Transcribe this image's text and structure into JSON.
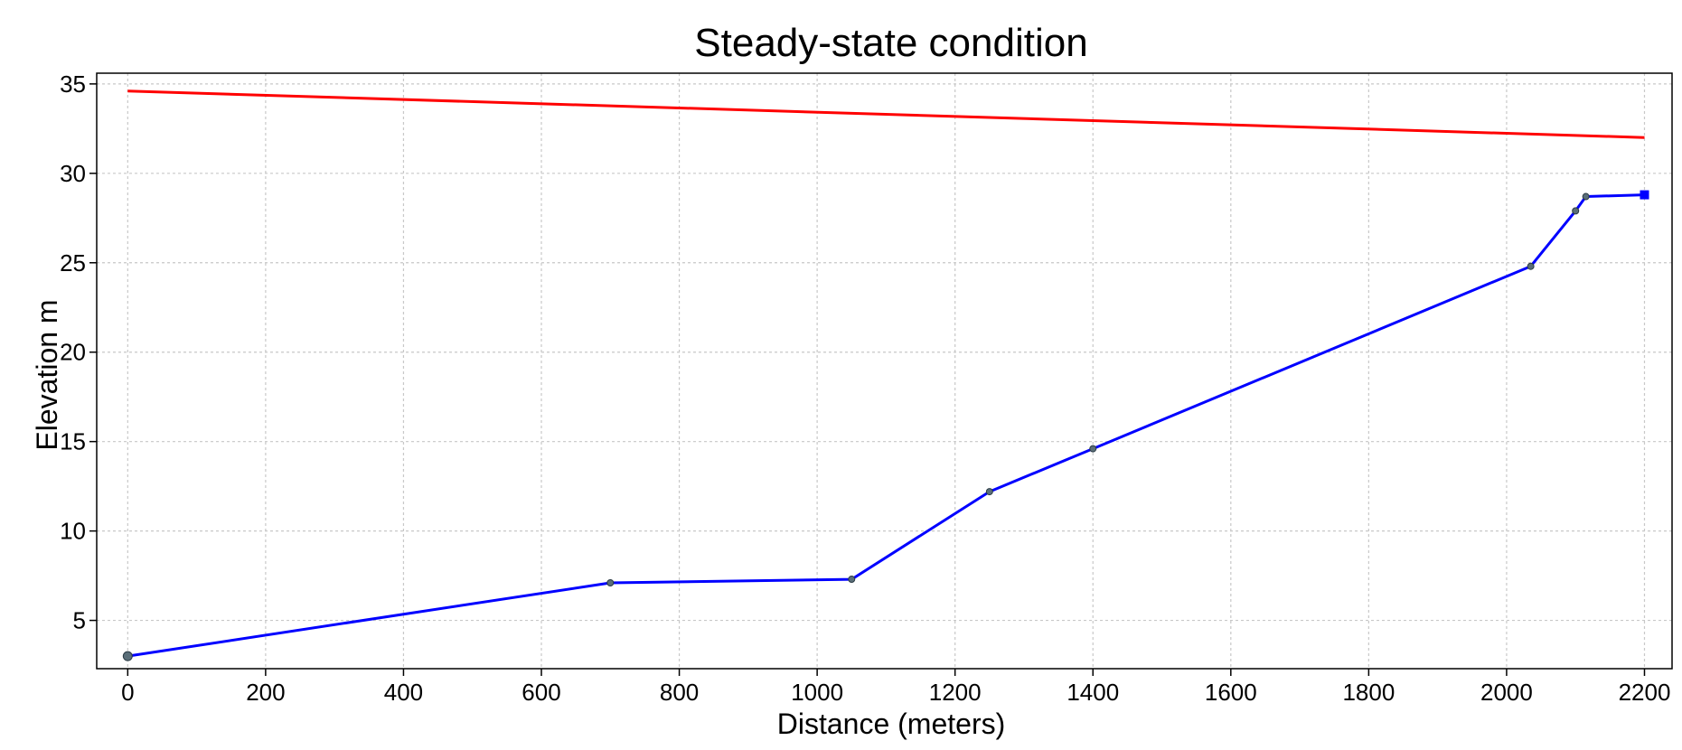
{
  "chart_data": {
    "type": "line",
    "title": "Steady-state condition",
    "xlabel": "Distance (meters)",
    "ylabel": "Elevation m",
    "xlim": [
      -45,
      2240
    ],
    "ylim": [
      2.3,
      35.6
    ],
    "xticks": [
      0,
      200,
      400,
      600,
      800,
      1000,
      1200,
      1400,
      1600,
      1800,
      2000,
      2200
    ],
    "yticks": [
      5,
      10,
      15,
      20,
      25,
      30,
      35
    ],
    "grid": true,
    "series": [
      {
        "color": "#ff0000",
        "points": [
          [
            0,
            34.6
          ],
          [
            2200,
            32.0
          ]
        ]
      },
      {
        "color": "#0000ff",
        "points": [
          [
            0,
            3.0
          ],
          [
            700,
            7.1
          ],
          [
            1050,
            7.3
          ],
          [
            1250,
            12.2
          ],
          [
            1400,
            14.6
          ],
          [
            2035,
            24.8
          ],
          [
            2100,
            27.9
          ],
          [
            2115,
            28.7
          ],
          [
            2200,
            28.8
          ]
        ]
      }
    ]
  }
}
